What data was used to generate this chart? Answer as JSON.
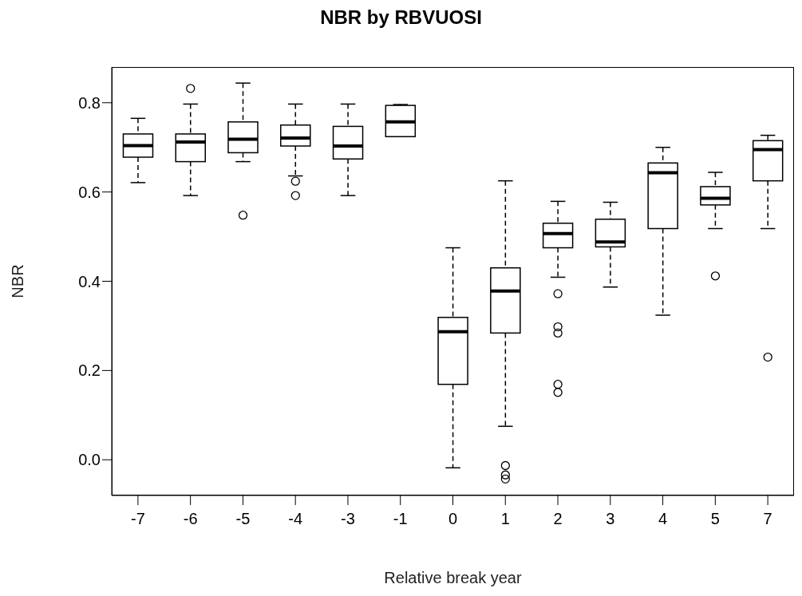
{
  "chart_data": {
    "type": "box",
    "title": "NBR by RBVUOSI",
    "xlabel": "Relative break year",
    "ylabel": "NBR",
    "color": "#000000",
    "categories": [
      "-7",
      "-6",
      "-5",
      "-4",
      "-3",
      "-1",
      "0",
      "1",
      "2",
      "3",
      "4",
      "5",
      "7"
    ],
    "ylim": [
      -0.08,
      0.88
    ],
    "yticks": [
      {
        "value": 0,
        "label": "0.0"
      },
      {
        "value": 0.2,
        "label": "0.2"
      },
      {
        "value": 0.4,
        "label": "0.4"
      },
      {
        "value": 0.6,
        "label": "0.6"
      },
      {
        "value": 0.8,
        "label": "0.8"
      }
    ],
    "boxes": [
      {
        "low": 0.621,
        "q1": 0.678,
        "median": 0.704,
        "q3": 0.73,
        "high": 0.765
      },
      {
        "low": 0.592,
        "q1": 0.668,
        "median": 0.712,
        "q3": 0.73,
        "high": 0.797,
        "outliers": [
          0.832
        ]
      },
      {
        "low": 0.668,
        "q1": 0.688,
        "median": 0.718,
        "q3": 0.757,
        "high": 0.844,
        "outliers": [
          0.548
        ]
      },
      {
        "low": 0.636,
        "q1": 0.703,
        "median": 0.721,
        "q3": 0.75,
        "high": 0.797,
        "outliers": [
          0.624,
          0.592
        ]
      },
      {
        "low": 0.592,
        "q1": 0.674,
        "median": 0.703,
        "q3": 0.747,
        "high": 0.797
      },
      {
        "low": 0.724,
        "q1": 0.724,
        "median": 0.757,
        "q3": 0.794,
        "high": 0.796
      },
      {
        "low": -0.018,
        "q1": 0.169,
        "median": 0.287,
        "q3": 0.319,
        "high": 0.475
      },
      {
        "low": 0.075,
        "q1": 0.284,
        "median": 0.378,
        "q3": 0.43,
        "high": 0.625,
        "outliers": [
          -0.013,
          -0.034,
          -0.043
        ]
      },
      {
        "low": 0.409,
        "q1": 0.475,
        "median": 0.507,
        "q3": 0.53,
        "high": 0.579,
        "outliers": [
          0.372,
          0.298,
          0.284,
          0.169,
          0.151
        ]
      },
      {
        "low": 0.387,
        "q1": 0.477,
        "median": 0.488,
        "q3": 0.539,
        "high": 0.577
      },
      {
        "low": 0.324,
        "q1": 0.518,
        "median": 0.643,
        "q3": 0.665,
        "high": 0.7
      },
      {
        "low": 0.518,
        "q1": 0.571,
        "median": 0.586,
        "q3": 0.612,
        "high": 0.644,
        "outliers": [
          0.412
        ]
      },
      {
        "low": 0.518,
        "q1": 0.625,
        "median": 0.695,
        "q3": 0.715,
        "high": 0.727,
        "outliers": [
          0.23
        ]
      }
    ]
  }
}
